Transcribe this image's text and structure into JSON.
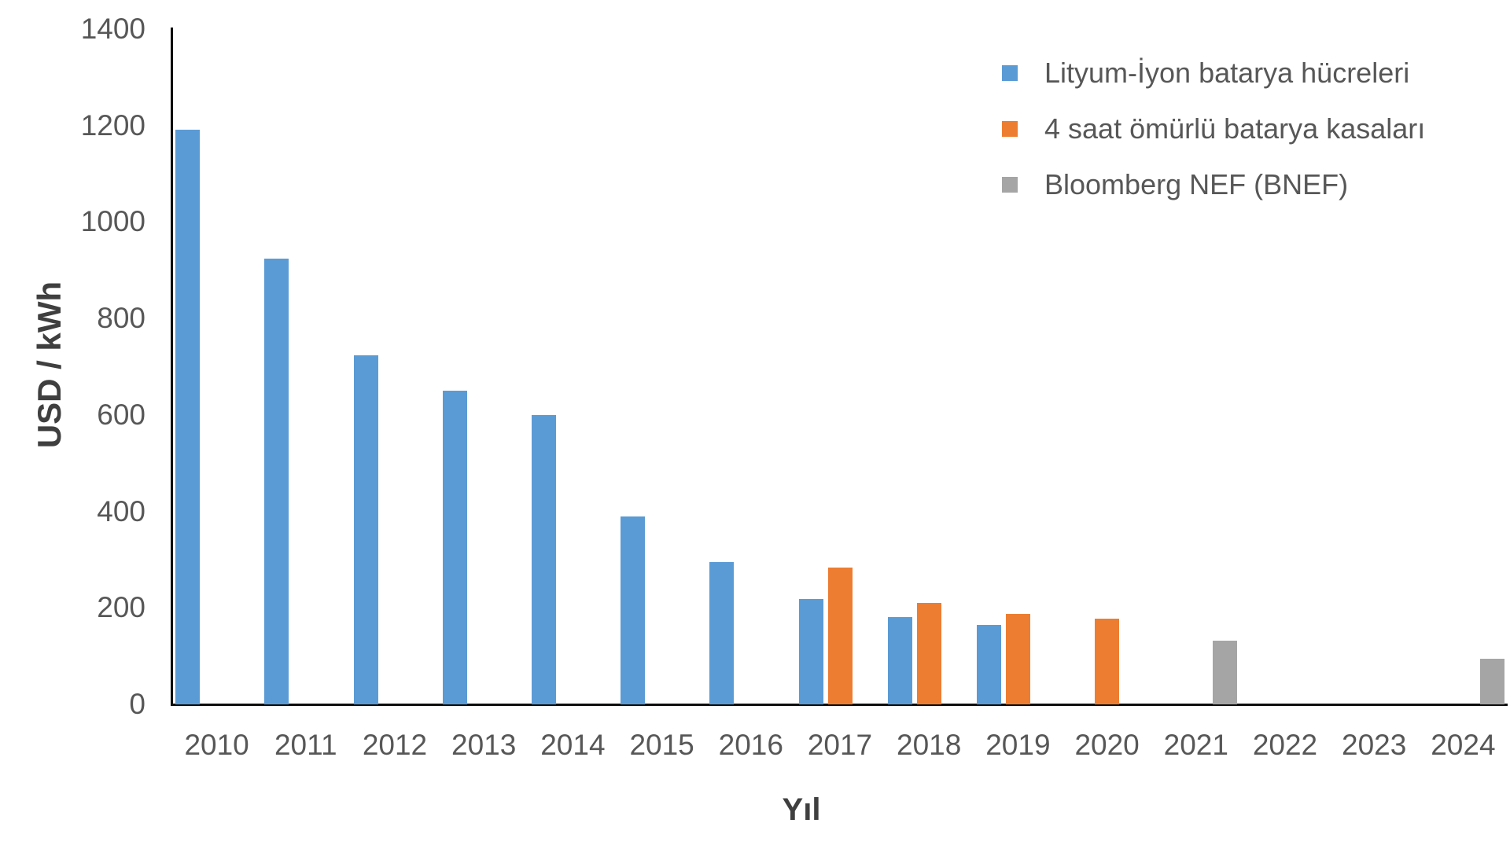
{
  "chart_data": {
    "type": "bar",
    "title": "",
    "xlabel": "Yıl",
    "ylabel": "USD / kWh",
    "ylim": [
      0,
      1400
    ],
    "yticks": [
      0,
      200,
      400,
      600,
      800,
      1000,
      1200,
      1400
    ],
    "grid": false,
    "legend_position": "top-right",
    "categories": [
      "2010",
      "2011",
      "2012",
      "2013",
      "2014",
      "2015",
      "2016",
      "2017",
      "2018",
      "2019",
      "2020",
      "2021",
      "2022",
      "2023",
      "2024"
    ],
    "series": [
      {
        "name": "Lityum-İyon batarya hücreleri",
        "color": "#5B9BD5",
        "values": [
          1191,
          924,
          723,
          650,
          599,
          390,
          295,
          218,
          181,
          165,
          null,
          null,
          null,
          null,
          null
        ]
      },
      {
        "name": "4 saat ömürlü batarya kasaları",
        "color": "#ED7D31",
        "values": [
          null,
          null,
          null,
          null,
          null,
          null,
          null,
          283,
          210,
          188,
          177,
          null,
          null,
          null,
          null
        ]
      },
      {
        "name": "Bloomberg NEF (BNEF)",
        "color": "#A5A5A5",
        "values": [
          null,
          null,
          null,
          null,
          null,
          null,
          null,
          null,
          null,
          null,
          null,
          132,
          null,
          null,
          95
        ]
      }
    ]
  },
  "colors": {
    "axis": "#0d0d0d",
    "tick_text": "#575757",
    "title_text": "#3f3f3f"
  }
}
